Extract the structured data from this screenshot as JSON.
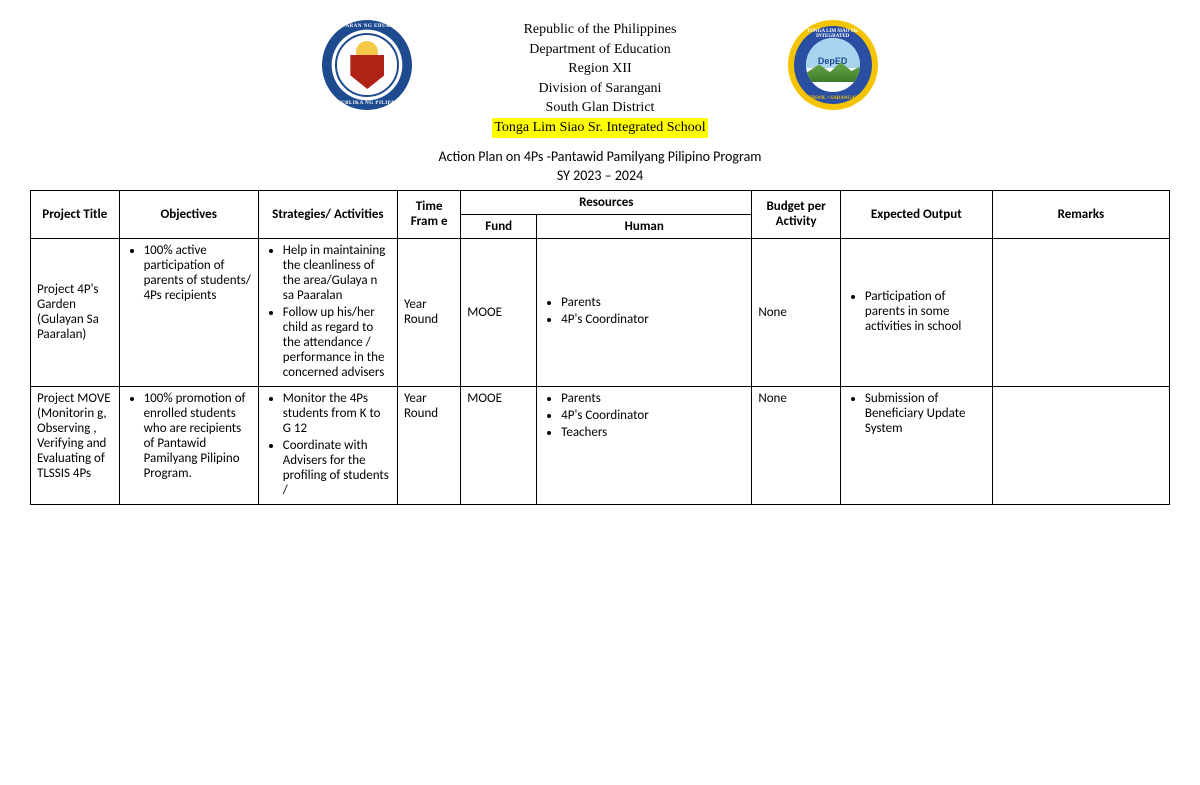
{
  "header": {
    "line1": "Republic of the Philippines",
    "line2": "Department of Education",
    "line3": "Region XII",
    "line4": "Division of Sarangani",
    "line5": "South Glan District",
    "school": "Tonga Lim Siao Sr. Integrated School"
  },
  "subtitle": "Action Plan on 4Ps -Pantawid Pamilyang Pilipino Program",
  "sy": "SY 2023 – 2024",
  "columns": {
    "title": "Project Title",
    "objectives": "Objectives",
    "strategies": "Strategies/ Activities",
    "time": "Time Fram e",
    "resources": "Resources",
    "fund": "Fund",
    "human": "Human",
    "budget": "Budget per Activity",
    "output": "Expected Output",
    "remarks": "Remarks"
  },
  "rows": [
    {
      "title": "Project 4P's Garden (Gulayan Sa Paaralan)",
      "objectives": [
        "100% active participation of parents of students/ 4Ps recipients"
      ],
      "strategies": [
        "Help in maintaining the cleanliness of the area/Gulaya n sa Paaralan",
        "Follow up his/her child as regard to the attendance / performance in the concerned advisers"
      ],
      "time": "Year Round",
      "fund": "MOOE",
      "human": [
        "Parents",
        "4P's Coordinator"
      ],
      "budget": "None",
      "output": [
        "Participation of parents in some activities in school"
      ],
      "remarks": ""
    },
    {
      "title": "Project MOVE (Monitorin g, Observing , Verifying and Evaluating of TLSSIS 4Ps",
      "objectives": [
        "100% promotion of enrolled students who are recipients of Pantawid Pamilyang Pilipino Program."
      ],
      "strategies": [
        "Monitor the 4Ps students from K to G 12",
        "Coordinate with Advisers for the profiling of students /"
      ],
      "time": "Year Round",
      "fund": "MOOE",
      "human": [
        "Parents",
        "4P's Coordinator",
        "Teachers"
      ],
      "budget": "None",
      "output": [
        "Submission of Beneficiary Update System"
      ],
      "remarks": ""
    }
  ]
}
